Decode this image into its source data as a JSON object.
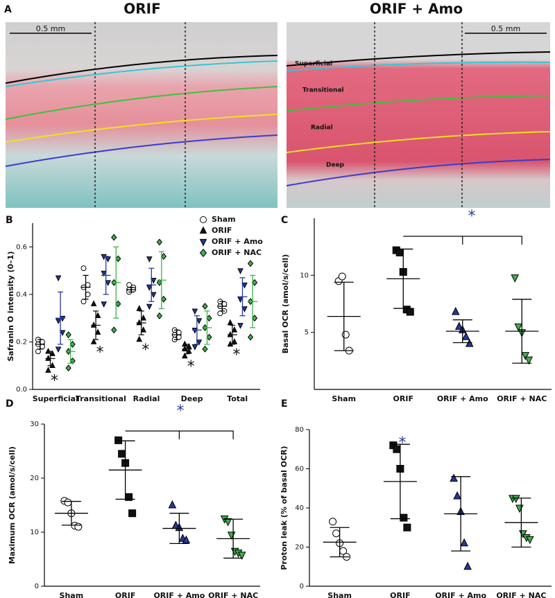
{
  "panel_a": {
    "label": "A",
    "titles": [
      "ORIF",
      "ORIF + Amo"
    ],
    "scale": "0.5 mm",
    "zones": [
      "Superficial",
      "Transitional",
      "Radial",
      "Deep"
    ]
  },
  "chart_data": [
    {
      "type": "grouped_dot",
      "panel": "B",
      "y_label": "Safranin O intensity (0–1)",
      "categories": [
        "Superficial",
        "Transitional",
        "Radial",
        "Deep",
        "Total"
      ],
      "ylim": [
        0,
        0.7
      ],
      "yticks": [
        {
          "value": 0,
          "label": "0.0"
        },
        0.2,
        0.4,
        0.6
      ],
      "series": [
        {
          "name": "Sham",
          "color": "#ffffff",
          "marker": "circle",
          "values": [
            0.19,
            0.43,
            0.42,
            0.23,
            0.35
          ],
          "sd": [
            0.02,
            0.05,
            0.01,
            0.02,
            0.02
          ],
          "points": [
            [
              0.21,
              0.2,
              0.19,
              0.18,
              0.16
            ],
            [
              0.51,
              0.44,
              0.43,
              0.4,
              0.37
            ],
            [
              0.44,
              0.43,
              0.42,
              0.42,
              0.41
            ],
            [
              0.25,
              0.24,
              0.23,
              0.22,
              0.21
            ],
            [
              0.37,
              0.36,
              0.35,
              0.33,
              0.32
            ]
          ]
        },
        {
          "name": "ORIF",
          "color": "#111111",
          "marker": "triangle-up",
          "values": [
            0.13,
            0.27,
            0.28,
            0.17,
            0.23
          ],
          "sd": [
            0.03,
            0.06,
            0.05,
            0.02,
            0.04
          ],
          "points": [
            [
              0.16,
              0.15,
              0.13,
              0.1,
              0.08
            ],
            [
              0.36,
              0.31,
              0.27,
              0.24,
              0.2
            ],
            [
              0.34,
              0.3,
              0.28,
              0.25,
              0.21
            ],
            [
              0.19,
              0.18,
              0.17,
              0.16,
              0.14
            ],
            [
              0.28,
              0.25,
              0.23,
              0.2,
              0.19
            ]
          ]
        },
        {
          "name": "ORIF + Amo",
          "color": "#25389a",
          "marker": "triangle-down",
          "values": [
            0.3,
            0.48,
            0.44,
            0.25,
            0.39
          ],
          "sd": [
            0.11,
            0.08,
            0.07,
            0.06,
            0.08
          ],
          "points": [
            [
              0.47,
              0.3,
              0.29,
              0.24,
              0.17
            ],
            [
              0.56,
              0.55,
              0.49,
              0.45,
              0.36
            ],
            [
              0.55,
              0.46,
              0.43,
              0.4,
              0.35
            ],
            [
              0.33,
              0.29,
              0.25,
              0.2,
              0.18
            ],
            [
              0.5,
              0.44,
              0.38,
              0.34,
              0.27
            ]
          ]
        },
        {
          "name": "ORIF + NAC",
          "color": "#3daf4a",
          "marker": "diamond",
          "values": [
            0.16,
            0.45,
            0.46,
            0.26,
            0.37
          ],
          "sd": [
            0.05,
            0.15,
            0.12,
            0.07,
            0.11
          ],
          "points": [
            [
              0.23,
              0.19,
              0.16,
              0.12,
              0.09
            ],
            [
              0.64,
              0.55,
              0.45,
              0.36,
              0.25
            ],
            [
              0.62,
              0.56,
              0.45,
              0.38,
              0.31
            ],
            [
              0.35,
              0.3,
              0.26,
              0.22,
              0.17
            ],
            [
              0.53,
              0.45,
              0.37,
              0.3,
              0.22
            ]
          ]
        }
      ],
      "annotations": [
        "*",
        "*",
        "*",
        "*",
        "*"
      ]
    },
    {
      "type": "dot",
      "panel": "C",
      "y_label": "Basal OCR (amol/s/cell)",
      "categories": [
        "Sham",
        "ORIF",
        "ORIF + Amo",
        "ORIF + NAC"
      ],
      "markers": [
        "circle",
        "square",
        "triangle-up",
        "triangle-down"
      ],
      "colors": [
        "#ffffff",
        "#111111",
        "#25389a",
        "#3daf4a"
      ],
      "ylim": [
        0,
        15
      ],
      "yticks": [
        5,
        10
      ],
      "points": [
        [
          9.5,
          9.9,
          4.8,
          3.4
        ],
        [
          12.2,
          12.0,
          10.3,
          7.0,
          6.8
        ],
        [
          6.8,
          5.5,
          5.2,
          4.6,
          4.0
        ],
        [
          9.8,
          5.5,
          5.0,
          3.0,
          2.6
        ]
      ],
      "means": [
        6.4,
        9.7,
        5.1,
        5.1
      ],
      "sd": [
        3.0,
        2.6,
        1.0,
        2.8
      ],
      "annotation": "*"
    },
    {
      "type": "dot",
      "panel": "D",
      "y_label": "Maximum OCR (amol/s/cell)",
      "categories": [
        "Sham",
        "ORIF",
        "ORIF + Amo",
        "ORIF + NAC"
      ],
      "markers": [
        "circle",
        "square",
        "triangle-up",
        "triangle-down"
      ],
      "colors": [
        "#ffffff",
        "#111111",
        "#25389a",
        "#3daf4a"
      ],
      "ylim": [
        0,
        30
      ],
      "yticks": [
        0,
        10,
        20,
        30
      ],
      "points": [
        [
          15.8,
          15.5,
          13.5,
          11.2,
          11.0
        ],
        [
          27.0,
          24.5,
          22.8,
          16.5,
          13.5
        ],
        [
          15.0,
          11.2,
          10.8,
          8.8,
          8.5
        ],
        [
          12.5,
          12.0,
          9.5,
          6.5,
          6.2,
          5.8
        ]
      ],
      "means": [
        13.5,
        21.5,
        10.7,
        8.8
      ],
      "sd": [
        2.2,
        5.4,
        2.8,
        3.6
      ],
      "annotation": "*"
    },
    {
      "type": "dot",
      "panel": "E",
      "y_label": "Proton leak (% of basal OCR)",
      "categories": [
        "Sham",
        "ORIF",
        "ORIF + Amo",
        "ORIF + NAC"
      ],
      "markers": [
        "circle",
        "square",
        "triangle-up",
        "triangle-down"
      ],
      "colors": [
        "#ffffff",
        "#111111",
        "#25389a",
        "#3daf4a"
      ],
      "ylim": [
        0,
        80
      ],
      "yticks": [
        0,
        20,
        40,
        60,
        80
      ],
      "points": [
        [
          33,
          27,
          22,
          18,
          15
        ],
        [
          72,
          70,
          60,
          35,
          30
        ],
        [
          55,
          46,
          38,
          22,
          10
        ],
        [
          45,
          45,
          40,
          27,
          25,
          24
        ]
      ],
      "means": [
        22.5,
        53.5,
        37,
        32.5
      ],
      "sd": [
        7.5,
        19,
        19,
        12.5
      ],
      "annotation": "*"
    }
  ]
}
